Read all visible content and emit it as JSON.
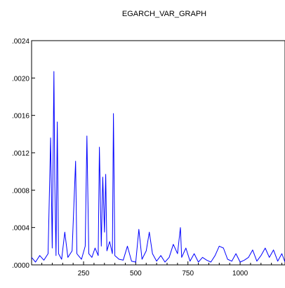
{
  "chart_data": {
    "type": "line",
    "title": "EGARCH_VAR_GRAPH",
    "xlabel": "",
    "ylabel": "",
    "xlim": [
      1,
      1215
    ],
    "ylim": [
      0,
      0.0024
    ],
    "x_ticks": [
      250,
      500,
      750,
      1000
    ],
    "x_tick_labels": [
      "250",
      "500",
      "750",
      "1000"
    ],
    "y_ticks": [
      0,
      0.0004,
      0.0008,
      0.0012,
      0.0016,
      0.002,
      0.0024
    ],
    "y_tick_labels": [
      ".0000",
      ".0004",
      ".0008",
      ".0012",
      ".0016",
      ".0020",
      ".0024"
    ],
    "grid": false,
    "legend": "none",
    "series": [
      {
        "color": "#0000ff",
        "x": [
          1,
          20,
          40,
          60,
          80,
          92,
          100,
          108,
          112,
          118,
          124,
          130,
          145,
          160,
          175,
          195,
          212,
          218,
          225,
          240,
          258,
          266,
          275,
          290,
          305,
          320,
          326,
          335,
          342,
          350,
          356,
          362,
          375,
          388,
          393,
          400,
          420,
          440,
          460,
          480,
          500,
          515,
          530,
          550,
          565,
          580,
          600,
          620,
          640,
          660,
          680,
          700,
          714,
          720,
          740,
          760,
          780,
          800,
          820,
          840,
          860,
          880,
          900,
          920,
          940,
          960,
          980,
          1000,
          1020,
          1040,
          1060,
          1080,
          1100,
          1120,
          1140,
          1160,
          1180,
          1200,
          1215
        ],
        "y": [
          8e-05,
          3e-05,
          0.0001,
          5e-05,
          0.00012,
          0.00136,
          0.00018,
          0.00207,
          0.0009,
          0.0001,
          0.00153,
          0.00012,
          6e-05,
          0.00035,
          8e-05,
          0.00015,
          0.00111,
          0.00012,
          0.0001,
          6e-05,
          0.0002,
          0.00138,
          0.00012,
          8e-05,
          0.00018,
          0.0001,
          0.00126,
          0.0002,
          0.00094,
          0.00035,
          0.00097,
          0.00015,
          0.00025,
          0.00012,
          0.00162,
          0.0001,
          6e-05,
          5e-05,
          0.0002,
          4e-05,
          3e-05,
          0.00038,
          6e-05,
          0.00015,
          0.00035,
          0.00012,
          4e-05,
          0.0001,
          3e-05,
          8e-05,
          0.00022,
          0.00012,
          0.0004,
          8e-05,
          0.00018,
          4e-05,
          0.00012,
          3e-05,
          8e-05,
          5e-05,
          3e-05,
          0.0001,
          0.0002,
          0.00018,
          6e-05,
          4e-05,
          0.00012,
          3e-05,
          5e-05,
          8e-05,
          0.00016,
          4e-05,
          0.0001,
          0.00018,
          8e-05,
          0.00016,
          4e-05,
          0.00012,
          3e-05
        ]
      }
    ]
  }
}
